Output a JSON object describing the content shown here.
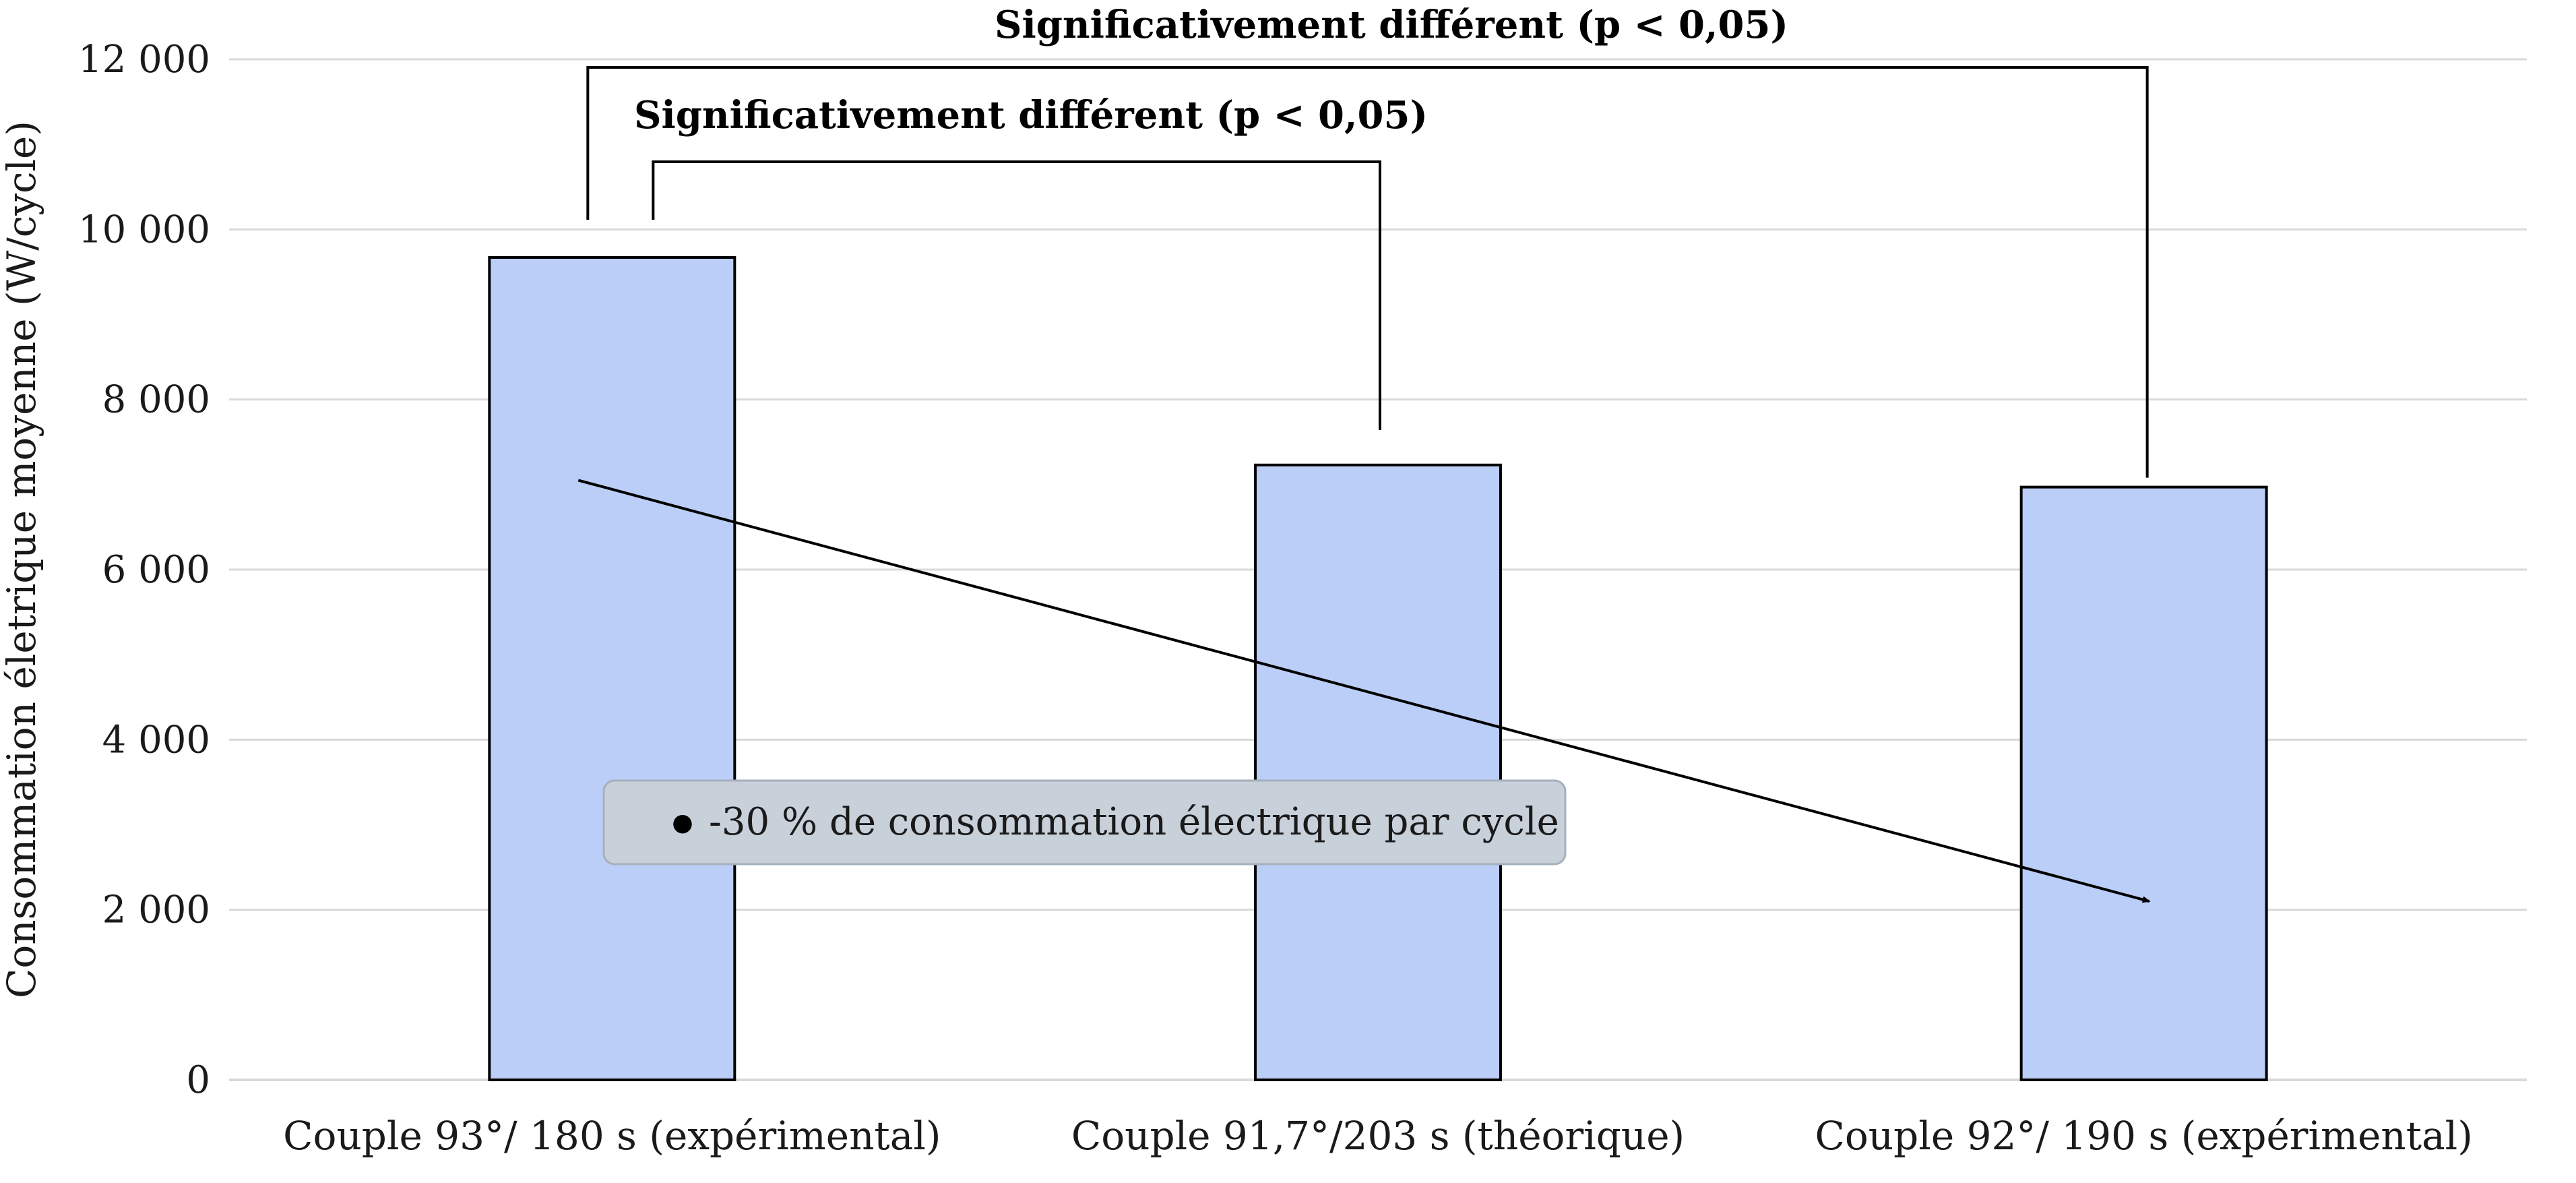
{
  "chart_data": {
    "type": "bar",
    "categories": [
      "Couple 93°/ 180 s (expérimental)",
      "Couple 91,7°/203 s (théorique)",
      "Couple 92°/ 190 s (expérimental)"
    ],
    "values": [
      9670,
      7230,
      6970
    ],
    "ylabel": "Consommation életrique moyenne (W/cycle)",
    "ylim": [
      0,
      12000
    ],
    "yticks": [
      0,
      2000,
      4000,
      6000,
      8000,
      10000,
      12000
    ],
    "ytick_labels": [
      "0",
      "2 000",
      "4 000",
      "6 000",
      "8 000",
      "10 000",
      "12 000"
    ],
    "grid": true,
    "bar_color": "#bacef7",
    "bar_edge_color": "#000000",
    "grid_color": "#d9d9d9",
    "annotations": {
      "bracket_outer": {
        "text": "Significativement différent (p < 0,05)",
        "from_category": 0,
        "to_category": 2
      },
      "bracket_inner": {
        "text": "Significativement différent (p < 0,05)",
        "from_category": 0,
        "to_category": 1
      },
      "trend_arrow": {
        "from": {
          "category": 0,
          "value": 7050
        },
        "to": {
          "category": 2,
          "value": 2100
        }
      },
      "note_box": {
        "text": "-30 % de consommation électrique par cycle",
        "bullet": "●",
        "fill": "#c8d0da",
        "stroke": "#a6b0bc"
      }
    }
  }
}
